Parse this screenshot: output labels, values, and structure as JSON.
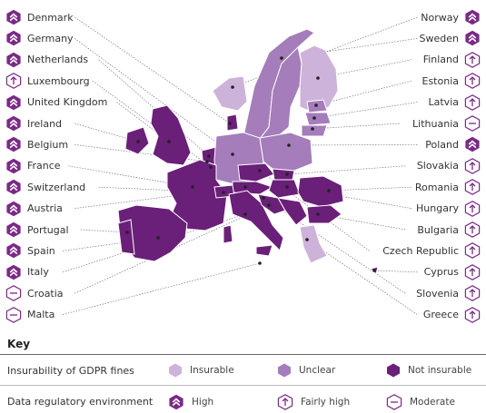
{
  "colors": {
    "insurable": "#cdb3d9",
    "unclear": "#a47dba",
    "not_insurable": "#6a1f78",
    "icon": "#7a2a86"
  },
  "left_countries": [
    {
      "name": "Denmark",
      "level": "high"
    },
    {
      "name": "Germany",
      "level": "high"
    },
    {
      "name": "Netherlands",
      "level": "high"
    },
    {
      "name": "Luxembourg",
      "level": "fairly_high"
    },
    {
      "name": "United Kingdom",
      "level": "high"
    },
    {
      "name": "Ireland",
      "level": "high"
    },
    {
      "name": "Belgium",
      "level": "high"
    },
    {
      "name": "France",
      "level": "high"
    },
    {
      "name": "Switzerland",
      "level": "high"
    },
    {
      "name": "Austria",
      "level": "high"
    },
    {
      "name": "Portugal",
      "level": "high"
    },
    {
      "name": "Spain",
      "level": "high"
    },
    {
      "name": "Italy",
      "level": "high"
    },
    {
      "name": "Croatia",
      "level": "moderate"
    },
    {
      "name": "Malta",
      "level": "moderate"
    }
  ],
  "right_countries": [
    {
      "name": "Norway",
      "level": "high"
    },
    {
      "name": "Sweden",
      "level": "high"
    },
    {
      "name": "Finland",
      "level": "fairly_high"
    },
    {
      "name": "Estonia",
      "level": "fairly_high"
    },
    {
      "name": "Latvia",
      "level": "fairly_high"
    },
    {
      "name": "Lithuania",
      "level": "moderate"
    },
    {
      "name": "Poland",
      "level": "high"
    },
    {
      "name": "Slovakia",
      "level": "fairly_high"
    },
    {
      "name": "Romania",
      "level": "fairly_high"
    },
    {
      "name": "Hungary",
      "level": "fairly_high"
    },
    {
      "name": "Bulgaria",
      "level": "fairly_high"
    },
    {
      "name": "Czech Republic",
      "level": "fairly_high"
    },
    {
      "name": "Cyprus",
      "level": "fairly_high"
    },
    {
      "name": "Slovenia",
      "level": "fairly_high"
    },
    {
      "name": "Greece",
      "level": "fairly_high"
    }
  ],
  "key": {
    "title": "Key",
    "row1_title": "Insurability of GDPR fines",
    "row1_items": [
      "Insurable",
      "Unclear",
      "Not insurable"
    ],
    "row2_title": "Data regulatory environment",
    "row2_items": [
      "High",
      "Fairly high",
      "Moderate"
    ]
  }
}
